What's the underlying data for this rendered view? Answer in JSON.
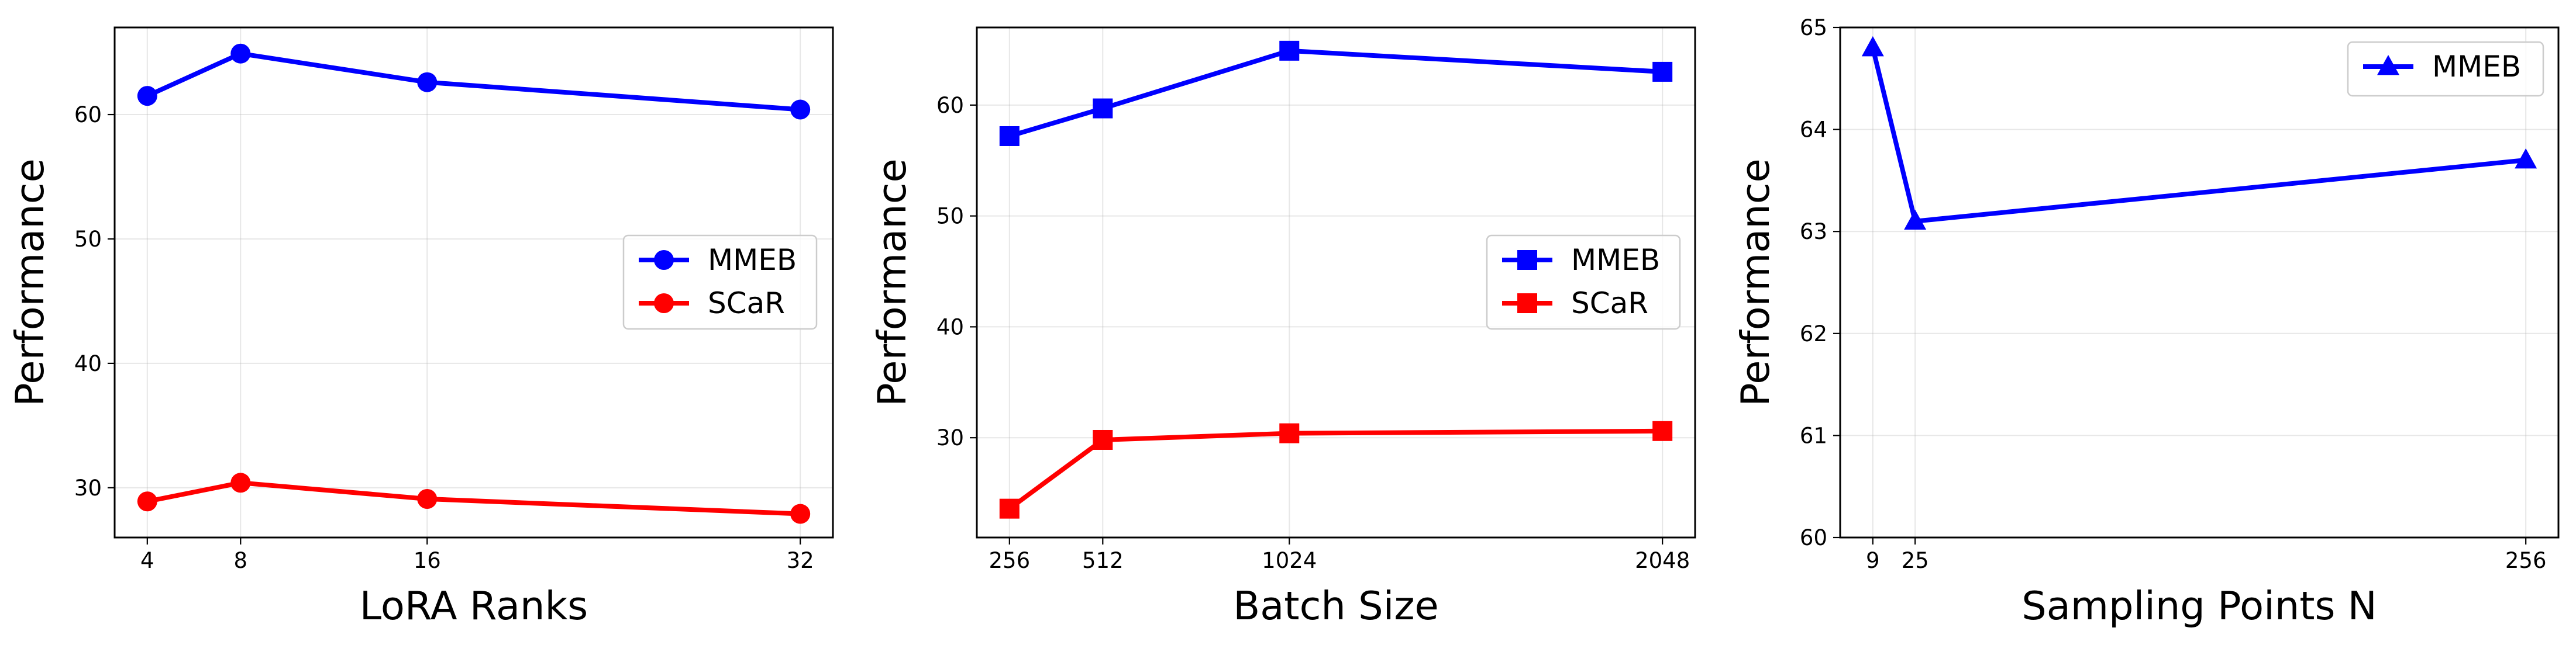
{
  "chart_data": [
    {
      "type": "line",
      "xlabel": "LoRA Ranks",
      "ylabel": "Performance",
      "x": [
        4,
        8,
        16,
        32
      ],
      "xticks": [
        4,
        8,
        16,
        32
      ],
      "xlim": [
        2.6,
        33.4
      ],
      "ylim": [
        26,
        67
      ],
      "yticks": [
        30,
        40,
        50,
        60
      ],
      "grid": true,
      "legend": "center-right",
      "series": [
        {
          "name": "MMEB",
          "color": "#0000ff",
          "marker": "circle",
          "values": [
            61.5,
            64.9,
            62.6,
            60.4
          ]
        },
        {
          "name": "SCaR",
          "color": "#ff0000",
          "marker": "circle",
          "values": [
            28.9,
            30.4,
            29.1,
            27.9
          ]
        }
      ]
    },
    {
      "type": "line",
      "xlabel": "Batch Size",
      "ylabel": "Performance",
      "x": [
        256,
        512,
        1024,
        2048
      ],
      "xticks": [
        256,
        512,
        1024,
        2048
      ],
      "xlim": [
        166.4,
        2137.6
      ],
      "ylim": [
        21,
        67
      ],
      "yticks": [
        30,
        40,
        50,
        60
      ],
      "grid": true,
      "legend": "center-right",
      "series": [
        {
          "name": "MMEB",
          "color": "#0000ff",
          "marker": "square",
          "values": [
            57.2,
            59.7,
            64.9,
            63.0
          ]
        },
        {
          "name": "SCaR",
          "color": "#ff0000",
          "marker": "square",
          "values": [
            23.6,
            29.8,
            30.4,
            30.6
          ]
        }
      ]
    },
    {
      "type": "line",
      "xlabel": "Sampling Points N",
      "ylabel": "Performance",
      "x": [
        9,
        25,
        256
      ],
      "xticks": [
        9,
        25,
        256
      ],
      "xlim": [
        -3.35,
        268.35
      ],
      "ylim": [
        60,
        65
      ],
      "yticks": [
        60,
        61,
        62,
        63,
        64,
        65
      ],
      "grid": true,
      "legend": "top-right",
      "series": [
        {
          "name": "MMEB",
          "color": "#0000ff",
          "marker": "triangle",
          "values": [
            64.8,
            63.1,
            63.7
          ]
        }
      ]
    }
  ]
}
